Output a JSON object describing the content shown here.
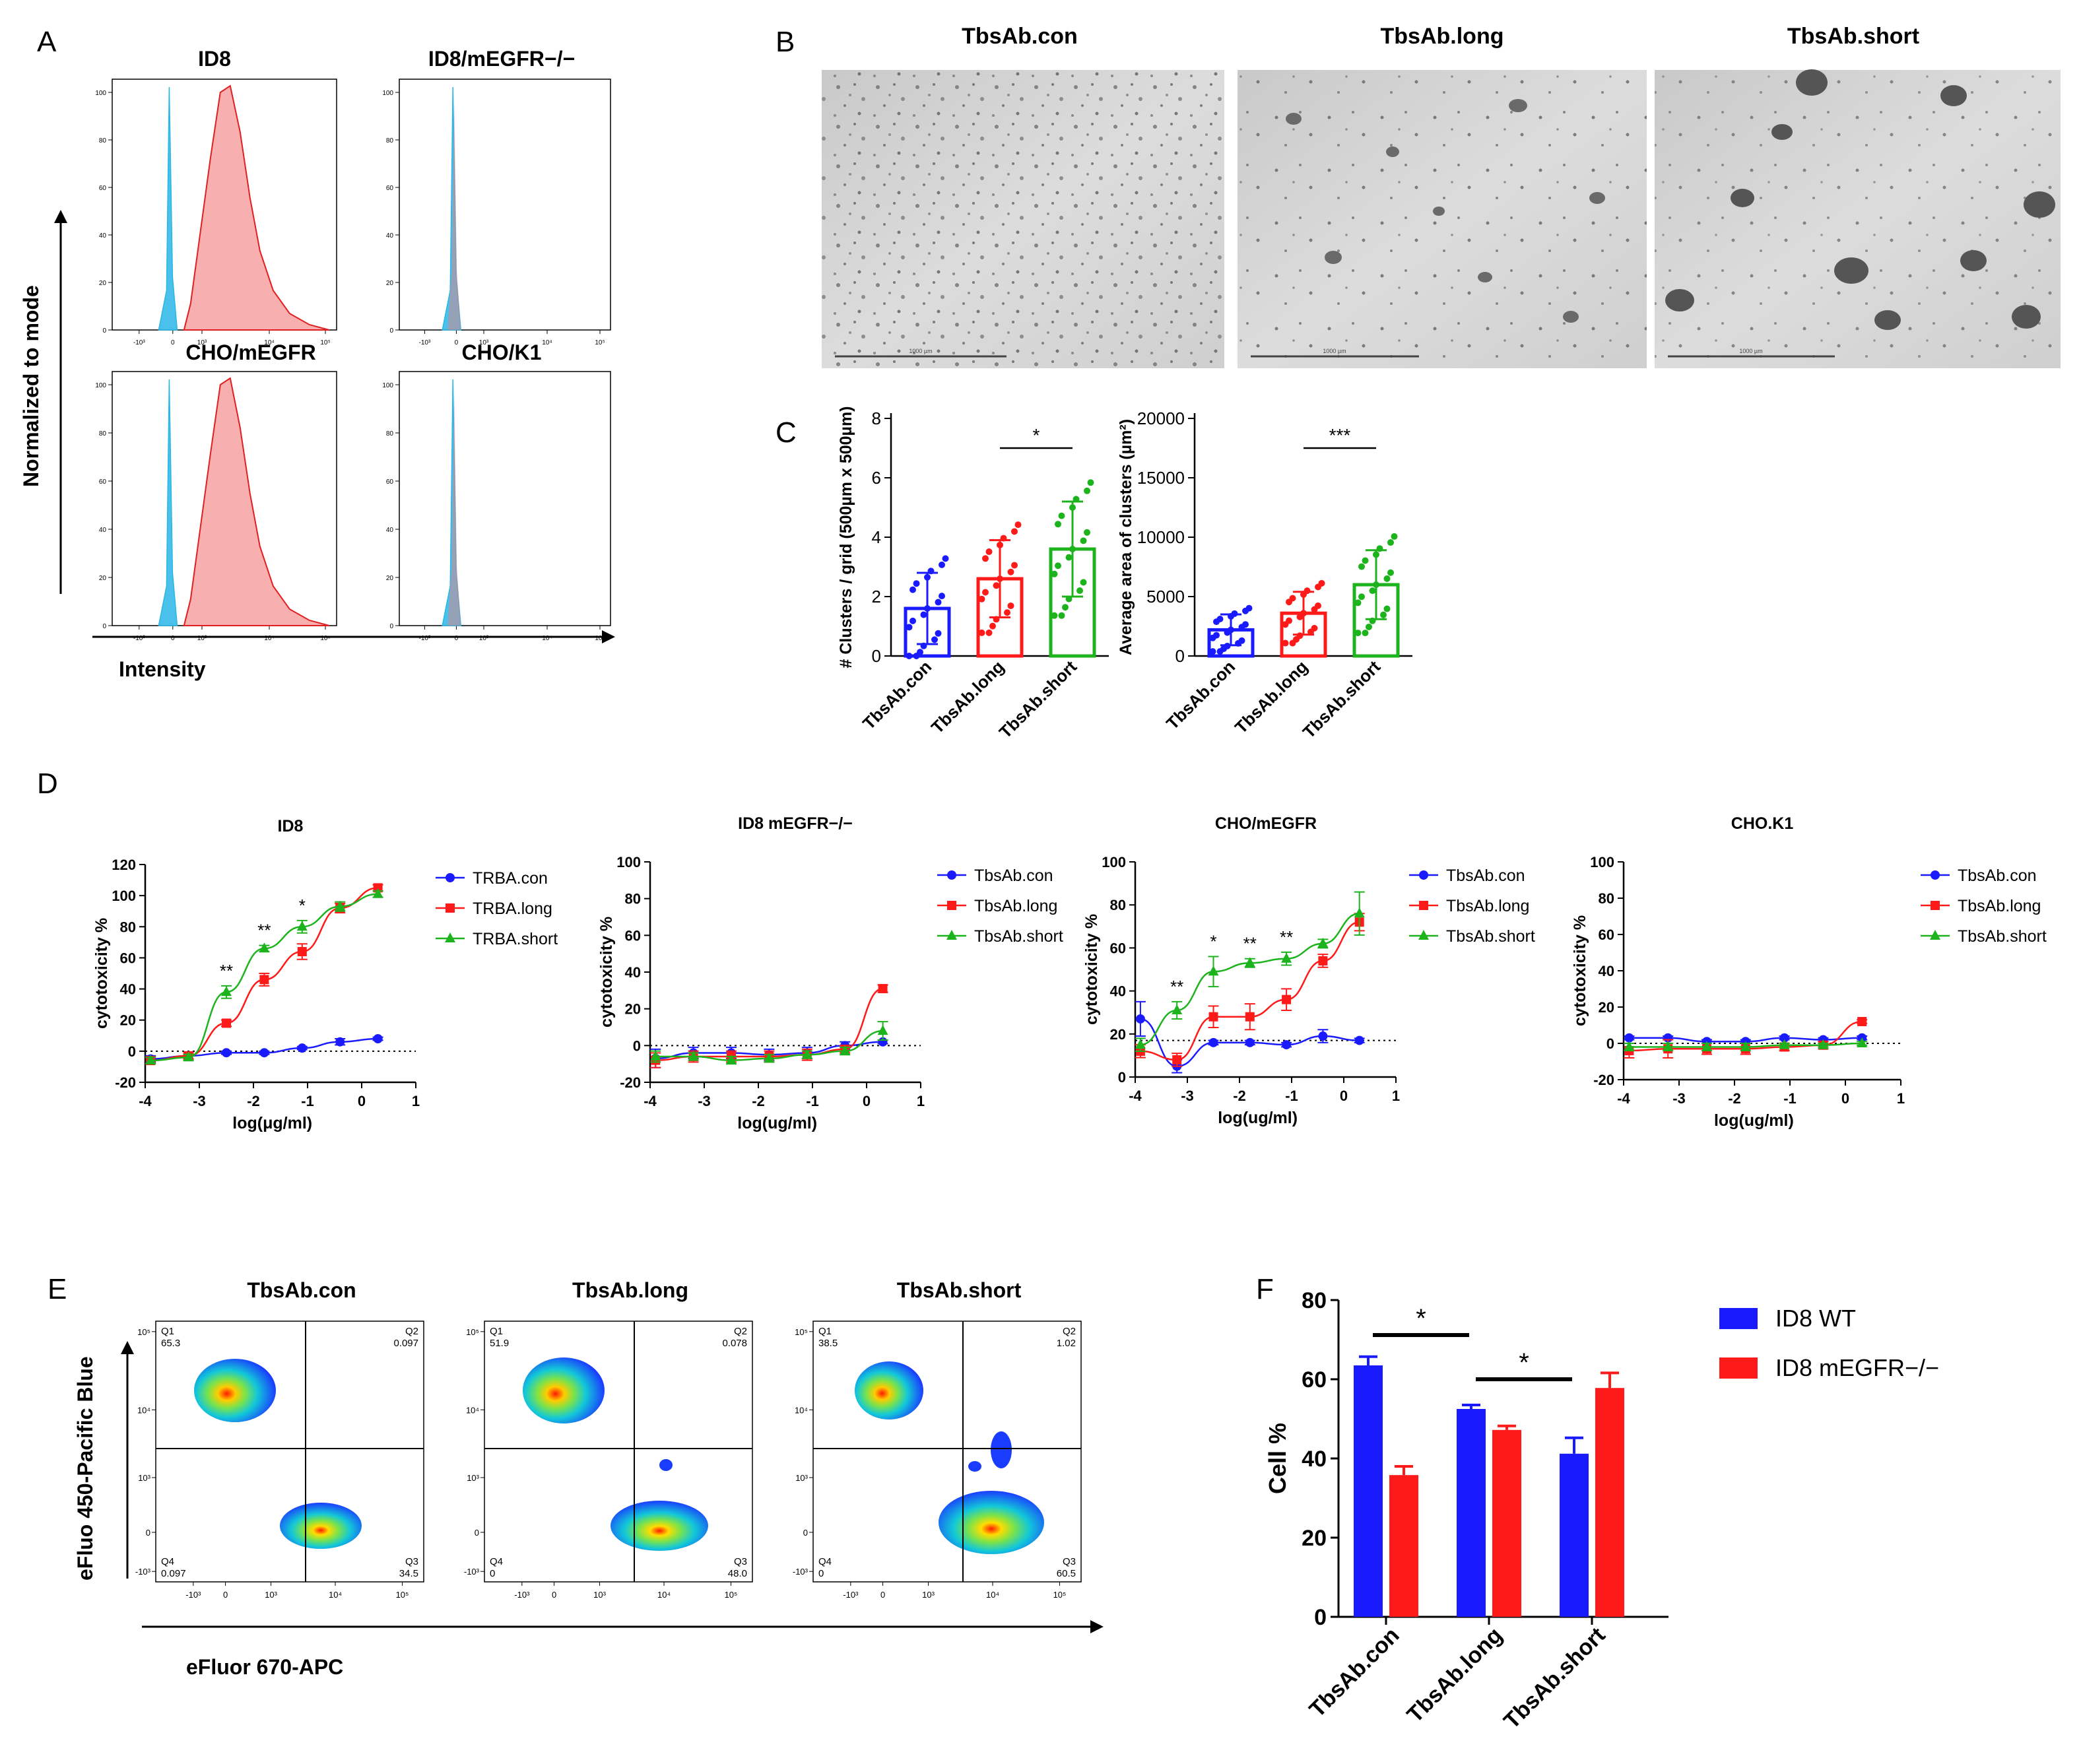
{
  "figure": {
    "panel_letters": [
      "A",
      "B",
      "C",
      "D",
      "E",
      "F"
    ]
  },
  "panel_a": {
    "titles": [
      "ID8",
      "ID8/mEGFR−/−",
      "CHO/mEGFR",
      "CHO/K1"
    ],
    "y_label": "Normalized to mode",
    "x_label": "Intensity",
    "y_ticks": [
      "0",
      "20",
      "40",
      "60",
      "80",
      "100"
    ],
    "x_ticks": [
      "-10³",
      "0",
      "10³",
      "10⁴",
      "10⁵"
    ],
    "histograms": [
      {
        "name": "ID8",
        "control_color": "#2ab6e6",
        "stain_color": "#f27a7a",
        "stain_shifted": true
      },
      {
        "name": "ID8/mEGFR−/−",
        "control_color": "#2ab6e6",
        "stain_color": "#f27a7a",
        "stain_shifted": false
      },
      {
        "name": "CHO/mEGFR",
        "control_color": "#2ab6e6",
        "stain_color": "#f27a7a",
        "stain_shifted": true
      },
      {
        "name": "CHO/K1",
        "control_color": "#2ab6e6",
        "stain_color": "#f27a7a",
        "stain_shifted": false
      }
    ]
  },
  "panel_b": {
    "titles": [
      "TbsAb.con",
      "TbsAb.long",
      "TbsAb.short"
    ],
    "scale_bar_text": "1000 µm"
  },
  "panel_c": {
    "charts": [
      {
        "type": "bar",
        "ylabel": "# Clusters / grid (500µm x 500µm)",
        "categories": [
          "TbsAb.con",
          "TbsAb.long",
          "TbsAb.short"
        ],
        "values": [
          1.6,
          2.6,
          3.6
        ],
        "errors": [
          1.2,
          1.3,
          1.6
        ],
        "colors": [
          "#1a1aff",
          "#ff1a1a",
          "#1db31d"
        ],
        "ylim": [
          0,
          8
        ],
        "yticks": [
          0,
          2,
          4,
          6,
          8
        ],
        "significance": [
          {
            "from": 1,
            "to": 2,
            "label": "*"
          }
        ]
      },
      {
        "type": "bar",
        "ylabel": "Average area of clusters (µm²)",
        "categories": [
          "TbsAb.con",
          "TbsAb.long",
          "TbsAb.short"
        ],
        "values": [
          2200,
          3600,
          6000
        ],
        "errors": [
          1300,
          1800,
          2900
        ],
        "colors": [
          "#1a1aff",
          "#ff1a1a",
          "#1db31d"
        ],
        "ylim": [
          0,
          20000
        ],
        "yticks": [
          0,
          5000,
          10000,
          15000,
          20000
        ],
        "significance": [
          {
            "from": 1,
            "to": 2,
            "label": "***"
          }
        ]
      }
    ]
  },
  "chart_data": [
    {
      "type": "line",
      "title": "ID8",
      "xlabel": "log(μg/ml)",
      "ylabel": "cytotoxicity %",
      "xlim": [
        -4,
        1
      ],
      "ylim": [
        -20,
        120
      ],
      "xticks": [
        -4,
        -3,
        -2,
        -1,
        0,
        1
      ],
      "yticks": [
        -20,
        0,
        20,
        40,
        60,
        80,
        100,
        120
      ],
      "x": [
        -3.9,
        -3.2,
        -2.5,
        -1.8,
        -1.1,
        -0.4,
        0.3
      ],
      "series": [
        {
          "name": "TRBA.con",
          "color": "#1a1aff",
          "marker": "circle",
          "values": [
            -5,
            -3,
            -1,
            -1,
            2,
            6,
            8
          ],
          "errors": [
            2,
            2,
            1,
            1,
            1,
            2,
            1
          ]
        },
        {
          "name": "TRBA.long",
          "color": "#ff1a1a",
          "marker": "square",
          "values": [
            -6,
            -3,
            18,
            46,
            64,
            92,
            105
          ],
          "errors": [
            2,
            2,
            2,
            4,
            5,
            3,
            2
          ]
        },
        {
          "name": "TRBA.short",
          "color": "#1db31d",
          "marker": "triangle",
          "values": [
            -6,
            -4,
            38,
            66,
            80,
            93,
            101
          ],
          "errors": [
            2,
            2,
            4,
            2,
            4,
            3,
            2
          ]
        }
      ],
      "annotations": [
        {
          "x": -2.5,
          "label": "**"
        },
        {
          "x": -1.8,
          "label": "**"
        },
        {
          "x": -1.1,
          "label": "*"
        }
      ]
    },
    {
      "type": "line",
      "title": "ID8 mEGFR−/−",
      "xlabel": "log(ug/ml)",
      "ylabel": "cytotoxicity %",
      "xlim": [
        -4,
        1
      ],
      "ylim": [
        -20,
        100
      ],
      "xticks": [
        -4,
        -3,
        -2,
        -1,
        0,
        1
      ],
      "yticks": [
        -20,
        0,
        20,
        40,
        60,
        80,
        100
      ],
      "x": [
        -3.9,
        -3.2,
        -2.5,
        -1.8,
        -1.1,
        -0.4,
        0.3
      ],
      "series": [
        {
          "name": "TbsAb.con",
          "color": "#1a1aff",
          "marker": "circle",
          "values": [
            -7,
            -4,
            -4,
            -5,
            -4,
            0,
            2
          ],
          "errors": [
            5,
            3,
            3,
            3,
            3,
            2,
            1
          ]
        },
        {
          "name": "TbsAb.long",
          "color": "#ff1a1a",
          "marker": "square",
          "values": [
            -8,
            -6,
            -6,
            -6,
            -5,
            -2,
            31
          ],
          "errors": [
            4,
            3,
            3,
            3,
            3,
            2,
            2
          ]
        },
        {
          "name": "TbsAb.short",
          "color": "#1db31d",
          "marker": "triangle",
          "values": [
            -6,
            -6,
            -8,
            -7,
            -5,
            -3,
            8
          ],
          "errors": [
            3,
            2,
            2,
            2,
            2,
            2,
            5
          ]
        }
      ],
      "annotations": []
    },
    {
      "type": "line",
      "title": "CHO/mEGFR",
      "xlabel": "log(ug/ml)",
      "ylabel": "cytotoxicity %",
      "xlim": [
        -4,
        1
      ],
      "ylim": [
        0,
        100
      ],
      "xticks": [
        -4,
        -3,
        -2,
        -1,
        0,
        1
      ],
      "yticks": [
        0,
        20,
        40,
        60,
        80,
        100
      ],
      "x": [
        -3.9,
        -3.2,
        -2.5,
        -1.8,
        -1.1,
        -0.4,
        0.3
      ],
      "series": [
        {
          "name": "TbsAb.con",
          "color": "#1a1aff",
          "marker": "circle",
          "values": [
            27,
            5,
            16,
            16,
            15,
            19,
            17
          ],
          "errors": [
            8,
            3,
            1,
            1,
            1,
            3,
            1
          ]
        },
        {
          "name": "TbsAb.long",
          "color": "#ff1a1a",
          "marker": "square",
          "values": [
            12,
            8,
            28,
            28,
            36,
            54,
            72
          ],
          "errors": [
            3,
            3,
            5,
            6,
            5,
            3,
            4
          ]
        },
        {
          "name": "TbsAb.short",
          "color": "#1db31d",
          "marker": "triangle",
          "values": [
            15,
            31,
            49,
            53,
            55,
            62,
            76
          ],
          "errors": [
            3,
            4,
            7,
            2,
            3,
            2,
            10
          ]
        }
      ],
      "annotations": [
        {
          "x": -3.2,
          "label": "**"
        },
        {
          "x": -2.5,
          "label": "*"
        },
        {
          "x": -1.8,
          "label": "**"
        },
        {
          "x": -1.1,
          "label": "**"
        }
      ]
    },
    {
      "type": "line",
      "title": "CHO.K1",
      "xlabel": "log(ug/ml)",
      "ylabel": "cytotoxicity %",
      "xlim": [
        -4,
        1
      ],
      "ylim": [
        -20,
        100
      ],
      "xticks": [
        -4,
        -3,
        -2,
        -1,
        0,
        1
      ],
      "yticks": [
        -20,
        0,
        20,
        40,
        60,
        80,
        100
      ],
      "x": [
        -3.9,
        -3.2,
        -2.5,
        -1.8,
        -1.1,
        -0.4,
        0.3
      ],
      "series": [
        {
          "name": "TbsAb.con",
          "color": "#1a1aff",
          "marker": "circle",
          "values": [
            3,
            3,
            1,
            1,
            3,
            2,
            3
          ],
          "errors": [
            1,
            1,
            1,
            1,
            1,
            1,
            1
          ]
        },
        {
          "name": "TbsAb.long",
          "color": "#ff1a1a",
          "marker": "square",
          "values": [
            -4,
            -3,
            -3,
            -3,
            -2,
            -1,
            12
          ],
          "errors": [
            4,
            5,
            3,
            3,
            2,
            2,
            1
          ]
        },
        {
          "name": "TbsAb.short",
          "color": "#1db31d",
          "marker": "triangle",
          "values": [
            -2,
            -2,
            -2,
            -2,
            -1,
            -1,
            0
          ],
          "errors": [
            2,
            2,
            2,
            2,
            1,
            1,
            1
          ]
        }
      ],
      "annotations": []
    },
    {
      "type": "bar",
      "title": "",
      "xlabel": "",
      "ylabel": "Cell %",
      "ylim": [
        0,
        80
      ],
      "yticks": [
        0,
        20,
        40,
        60,
        80
      ],
      "categories": [
        "TbsAb.con",
        "TbsAb.long",
        "TbsAb.short"
      ],
      "series": [
        {
          "name": "ID8 WT",
          "color": "#1a1aff",
          "values": [
            63.5,
            52.5,
            41.2
          ],
          "errors": [
            2.2,
            1.0,
            4.0
          ]
        },
        {
          "name": "ID8 mEGFR−/−",
          "color": "#ff1a1a",
          "values": [
            35.8,
            47.2,
            57.8
          ],
          "errors": [
            2.2,
            1.0,
            3.8
          ]
        }
      ],
      "significance": [
        {
          "from": 0,
          "to": 1,
          "label": "*"
        },
        {
          "from": 1,
          "to": 2,
          "label": "*"
        }
      ]
    }
  ],
  "panel_e": {
    "titles": [
      "TbsAb.con",
      "TbsAb.long",
      "TbsAb.short"
    ],
    "y_label": "eFluo 450-Pacific Blue",
    "x_label": "eFluor 670-APC",
    "x_ticks": [
      "-10³",
      "0",
      "10³",
      "10⁴",
      "10⁵"
    ],
    "y_ticks": [
      "10⁵",
      "10⁴",
      "10³",
      "0",
      "-10³"
    ],
    "quadrants": [
      {
        "Q1": "65.3",
        "Q2": "0.097",
        "Q3": "34.5",
        "Q4": "0.097"
      },
      {
        "Q1": "51.9",
        "Q2": "0.078",
        "Q3": "48.0",
        "Q4": "0"
      },
      {
        "Q1": "38.5",
        "Q2": "1.02",
        "Q3": "60.5",
        "Q4": "0"
      }
    ],
    "quadrant_names": [
      "Q1",
      "Q2",
      "Q3",
      "Q4"
    ]
  }
}
